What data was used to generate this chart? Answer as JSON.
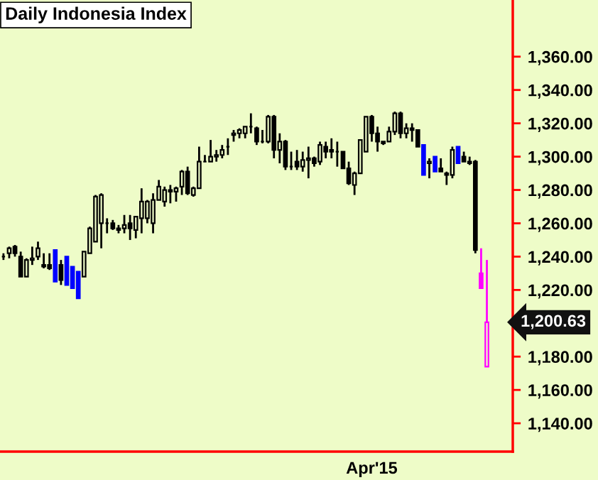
{
  "chart_data": {
    "type": "candlestick",
    "title": "Daily Indonesia Index",
    "categories": [
      null,
      null,
      null,
      null,
      null,
      null,
      null,
      null,
      null,
      null,
      null,
      null,
      null,
      null,
      null,
      null,
      null,
      null,
      null,
      null,
      null,
      null,
      null,
      null,
      null,
      null,
      null,
      null,
      null,
      null,
      null,
      null,
      null,
      null,
      null,
      null,
      null,
      null,
      null,
      null,
      null,
      null,
      null,
      null,
      null,
      null,
      null,
      null,
      null,
      null,
      null,
      null,
      null,
      null,
      null,
      null,
      null,
      null,
      null,
      null,
      null,
      null,
      null,
      null,
      "Apr'15",
      null,
      null,
      null,
      null,
      null,
      null,
      null,
      null,
      null,
      null,
      null,
      null,
      null,
      null,
      null,
      null,
      null,
      null,
      null,
      null
    ],
    "ohlc": [
      [
        1240,
        1242,
        1238,
        1240
      ],
      [
        1242,
        1246,
        1239,
        1245
      ],
      [
        1246,
        1247,
        1240,
        1242
      ],
      [
        1240,
        1243,
        1228,
        1228
      ],
      [
        1228,
        1239,
        1228,
        1238
      ],
      [
        1238,
        1246,
        1235,
        1239
      ],
      [
        1240,
        1249,
        1238,
        1245
      ],
      [
        1235,
        1242,
        1233,
        1234
      ],
      [
        1235,
        1242,
        1232,
        1233
      ],
      [
        1244,
        1244,
        1225,
        1225
      ],
      [
        1235,
        1238,
        1223,
        1226
      ],
      [
        1240,
        1240,
        1223,
        1223
      ],
      [
        1234,
        1234,
        1221,
        1221
      ],
      [
        1231,
        1231,
        1215,
        1215
      ],
      [
        1228,
        1243,
        1228,
        1243
      ],
      [
        1242,
        1258,
        1242,
        1257
      ],
      [
        1249,
        1277,
        1249,
        1276
      ],
      [
        1260,
        1278,
        1245,
        1277
      ],
      [
        1260,
        1263,
        1254,
        1260
      ],
      [
        1260,
        1262,
        1256,
        1257
      ],
      [
        1256,
        1259,
        1254,
        1257
      ],
      [
        1257,
        1265,
        1254,
        1259
      ],
      [
        1260,
        1265,
        1250,
        1257
      ],
      [
        1256,
        1264,
        1251,
        1264
      ],
      [
        1263,
        1281,
        1254,
        1273
      ],
      [
        1263,
        1274,
        1260,
        1273
      ],
      [
        1260,
        1278,
        1254,
        1274
      ],
      [
        1274,
        1286,
        1274,
        1282
      ],
      [
        1273,
        1282,
        1270,
        1280
      ],
      [
        1279,
        1283,
        1272,
        1280
      ],
      [
        1279,
        1282,
        1273,
        1281
      ],
      [
        1282,
        1292,
        1277,
        1291
      ],
      [
        1291,
        1294,
        1277,
        1278
      ],
      [
        1277,
        1282,
        1276,
        1281
      ],
      [
        1281,
        1306,
        1281,
        1297
      ],
      [
        1297,
        1301,
        1297,
        1297
      ],
      [
        1297,
        1310,
        1297,
        1300
      ],
      [
        1300,
        1304,
        1297,
        1301
      ],
      [
        1301,
        1307,
        1299,
        1304
      ],
      [
        1306,
        1311,
        1301,
        1306
      ],
      [
        1313,
        1316,
        1309,
        1314
      ],
      [
        1314,
        1317,
        1311,
        1316
      ],
      [
        1314,
        1318,
        1311,
        1318
      ],
      [
        1318,
        1326,
        1314,
        1318
      ],
      [
        1317,
        1318,
        1307,
        1309
      ],
      [
        1309,
        1316,
        1308,
        1309
      ],
      [
        1309,
        1325,
        1308,
        1324
      ],
      [
        1324,
        1325,
        1299,
        1304
      ],
      [
        1304,
        1314,
        1296,
        1309
      ],
      [
        1309,
        1310,
        1292,
        1294
      ],
      [
        1294,
        1303,
        1292,
        1294
      ],
      [
        1297,
        1304,
        1292,
        1294
      ],
      [
        1294,
        1303,
        1291,
        1298
      ],
      [
        1298,
        1306,
        1287,
        1299
      ],
      [
        1299,
        1300,
        1294,
        1296
      ],
      [
        1297,
        1309,
        1295,
        1307
      ],
      [
        1306,
        1309,
        1299,
        1303
      ],
      [
        1304,
        1311,
        1299,
        1303
      ],
      [
        1303,
        1309,
        1294,
        1303
      ],
      [
        1303,
        1303,
        1293,
        1293
      ],
      [
        1293,
        1297,
        1283,
        1284
      ],
      [
        1283,
        1291,
        1277,
        1290
      ],
      [
        1290,
        1310,
        1290,
        1310
      ],
      [
        1303,
        1324,
        1303,
        1324
      ],
      [
        1324,
        1325,
        1309,
        1314
      ],
      [
        1314,
        1318,
        1303,
        1309
      ],
      [
        1309,
        1309,
        1307,
        1308
      ],
      [
        1309,
        1318,
        1309,
        1315
      ],
      [
        1315,
        1327,
        1313,
        1326
      ],
      [
        1326,
        1327,
        1311,
        1314
      ],
      [
        1314,
        1320,
        1311,
        1317
      ],
      [
        1317,
        1320,
        1309,
        1316
      ],
      [
        1316,
        1316,
        1306,
        1306
      ],
      [
        1307,
        1307,
        1289,
        1289
      ],
      [
        1296,
        1299,
        1287,
        1297
      ],
      [
        1300,
        1300,
        1291,
        1291
      ],
      [
        1293,
        1299,
        1291,
        1291
      ],
      [
        1290,
        1291,
        1283,
        1289
      ],
      [
        1289,
        1306,
        1287,
        1304
      ],
      [
        1306,
        1306,
        1296,
        1296
      ],
      [
        1300,
        1303,
        1297,
        1297
      ],
      [
        1297,
        1300,
        1295,
        1296
      ],
      [
        1297,
        1298,
        1242,
        1244
      ],
      [
        1230,
        1245,
        1221,
        1221
      ],
      [
        1174,
        1238,
        1174,
        1200.63
      ]
    ],
    "colors": [
      "#000000",
      "#000000",
      "#000000",
      "#000000",
      "#000000",
      "#000000",
      "#000000",
      "#000000",
      "#000000",
      "#0000ff",
      "#000000",
      "#0000ff",
      "#0000ff",
      "#0000ff",
      "#000000",
      "#000000",
      "#000000",
      "#000000",
      "#000000",
      "#000000",
      "#000000",
      "#000000",
      "#000000",
      "#000000",
      "#000000",
      "#000000",
      "#000000",
      "#000000",
      "#000000",
      "#000000",
      "#000000",
      "#000000",
      "#000000",
      "#000000",
      "#000000",
      "#000000",
      "#000000",
      "#000000",
      "#000000",
      "#000000",
      "#000000",
      "#000000",
      "#000000",
      "#000000",
      "#000000",
      "#000000",
      "#000000",
      "#000000",
      "#000000",
      "#000000",
      "#000000",
      "#000000",
      "#000000",
      "#000000",
      "#000000",
      "#000000",
      "#000000",
      "#000000",
      "#000000",
      "#000000",
      "#000000",
      "#000000",
      "#000000",
      "#000000",
      "#000000",
      "#000000",
      "#000000",
      "#000000",
      "#000000",
      "#000000",
      "#000000",
      "#000000",
      "#000000",
      "#0000ff",
      "#000000",
      "#0000ff",
      "#000000",
      "#000000",
      "#000000",
      "#0000ff",
      "#000000",
      "#000000",
      "#000000",
      "#ff00ff",
      "#ff00ff"
    ],
    "ylim": [
      1123,
      1394
    ],
    "yticks": [
      {
        "value": 1140,
        "label": "1,140.00"
      },
      {
        "value": 1160,
        "label": "1,160.00"
      },
      {
        "value": 1180,
        "label": "1,180.00"
      },
      {
        "value": 1220,
        "label": "1,220.00"
      },
      {
        "value": 1240,
        "label": "1,240.00"
      },
      {
        "value": 1260,
        "label": "1,260.00"
      },
      {
        "value": 1280,
        "label": "1,280.00"
      },
      {
        "value": 1300,
        "label": "1,300.00"
      },
      {
        "value": 1320,
        "label": "1,320.00"
      },
      {
        "value": 1340,
        "label": "1,340.00"
      },
      {
        "value": 1360,
        "label": "1,360.00"
      }
    ],
    "annotations": [
      "1,200.63"
    ],
    "grid": false,
    "legend": false
  }
}
